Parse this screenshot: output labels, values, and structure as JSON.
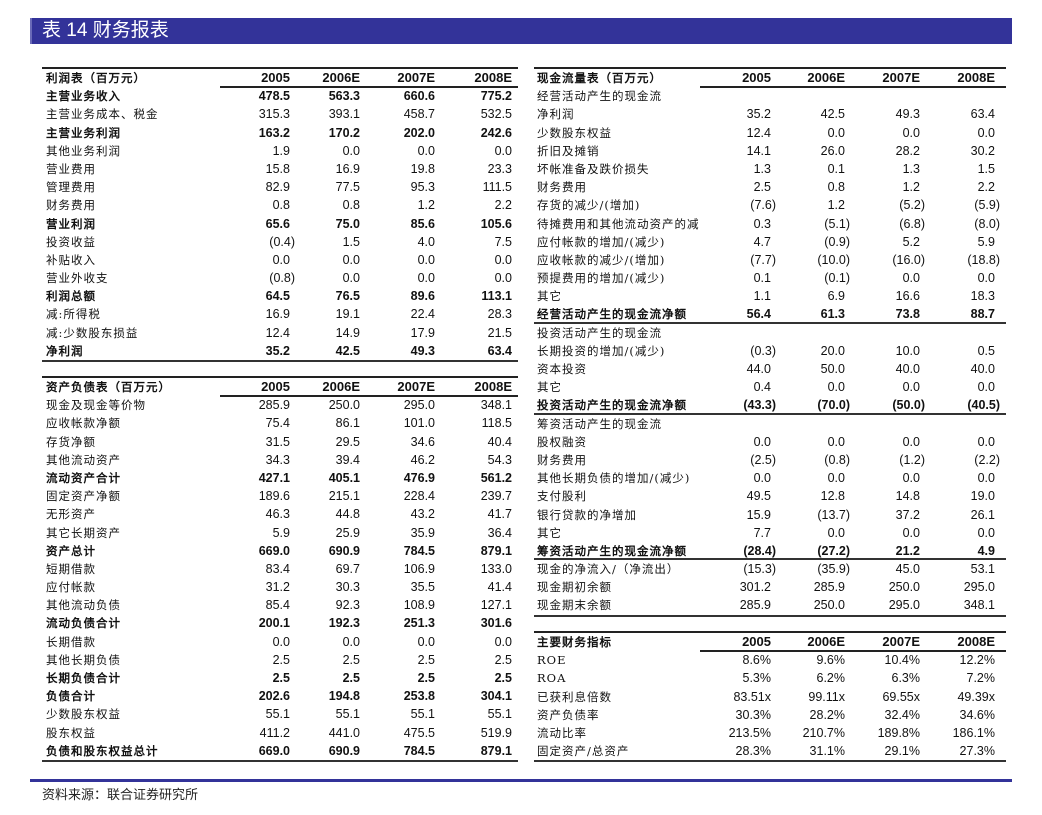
{
  "title": "表 14 财务报表",
  "source": "资料来源：联合证券研究所",
  "colors": {
    "title_bar": "#333399",
    "footer_line": "#333399"
  },
  "tables": {
    "income": {
      "header": {
        "label": "利润表（百万元）",
        "values": [
          "2005",
          "2006E",
          "2007E",
          "2008E"
        ]
      },
      "rows": [
        {
          "label": "主营业务收入",
          "values": [
            "478.5",
            "563.3",
            "660.6",
            "775.2"
          ],
          "bold": true
        },
        {
          "label": "主营业务成本、税金",
          "values": [
            "315.3",
            "393.1",
            "458.7",
            "532.5"
          ]
        },
        {
          "label": "主营业务利润",
          "values": [
            "163.2",
            "170.2",
            "202.0",
            "242.6"
          ],
          "bold": true
        },
        {
          "label": "其他业务利润",
          "values": [
            "1.9",
            "0.0",
            "0.0",
            "0.0"
          ]
        },
        {
          "label": "营业费用",
          "values": [
            "15.8",
            "16.9",
            "19.8",
            "23.3"
          ]
        },
        {
          "label": "管理费用",
          "values": [
            "82.9",
            "77.5",
            "95.3",
            "111.5"
          ]
        },
        {
          "label": "财务费用",
          "values": [
            "0.8",
            "0.8",
            "1.2",
            "2.2"
          ]
        },
        {
          "label": "营业利润",
          "values": [
            "65.6",
            "75.0",
            "85.6",
            "105.6"
          ],
          "bold": true
        },
        {
          "label": "投资收益",
          "values": [
            "(0.4)",
            "1.5",
            "4.0",
            "7.5"
          ]
        },
        {
          "label": "补贴收入",
          "values": [
            "0.0",
            "0.0",
            "0.0",
            "0.0"
          ]
        },
        {
          "label": "营业外收支",
          "values": [
            "(0.8)",
            "0.0",
            "0.0",
            "0.0"
          ]
        },
        {
          "label": "利润总额",
          "values": [
            "64.5",
            "76.5",
            "89.6",
            "113.1"
          ],
          "bold": true
        },
        {
          "label": "减:所得税",
          "values": [
            "16.9",
            "19.1",
            "22.4",
            "28.3"
          ]
        },
        {
          "label": "减:少数股东损益",
          "values": [
            "12.4",
            "14.9",
            "17.9",
            "21.5"
          ]
        },
        {
          "label": "净利润",
          "values": [
            "35.2",
            "42.5",
            "49.3",
            "63.4"
          ],
          "bold": true
        }
      ]
    },
    "balance": {
      "header": {
        "label": "资产负债表（百万元）",
        "values": [
          "2005",
          "2006E",
          "2007E",
          "2008E"
        ]
      },
      "rows": [
        {
          "label": "现金及现金等价物",
          "values": [
            "285.9",
            "250.0",
            "295.0",
            "348.1"
          ]
        },
        {
          "label": "应收帐款净额",
          "values": [
            "75.4",
            "86.1",
            "101.0",
            "118.5"
          ]
        },
        {
          "label": "存货净额",
          "values": [
            "31.5",
            "29.5",
            "34.6",
            "40.4"
          ]
        },
        {
          "label": "其他流动资产",
          "values": [
            "34.3",
            "39.4",
            "46.2",
            "54.3"
          ]
        },
        {
          "label": "流动资产合计",
          "values": [
            "427.1",
            "405.1",
            "476.9",
            "561.2"
          ],
          "bold": true
        },
        {
          "label": "固定资产净额",
          "values": [
            "189.6",
            "215.1",
            "228.4",
            "239.7"
          ]
        },
        {
          "label": "无形资产",
          "values": [
            "46.3",
            "44.8",
            "43.2",
            "41.7"
          ]
        },
        {
          "label": "其它长期资产",
          "values": [
            "5.9",
            "25.9",
            "35.9",
            "36.4"
          ]
        },
        {
          "label": "资产总计",
          "values": [
            "669.0",
            "690.9",
            "784.5",
            "879.1"
          ],
          "bold": true
        },
        {
          "label": "短期借款",
          "values": [
            "83.4",
            "69.7",
            "106.9",
            "133.0"
          ]
        },
        {
          "label": "应付帐款",
          "values": [
            "31.2",
            "30.3",
            "35.5",
            "41.4"
          ]
        },
        {
          "label": "其他流动负债",
          "values": [
            "85.4",
            "92.3",
            "108.9",
            "127.1"
          ]
        },
        {
          "label": "流动负债合计",
          "values": [
            "200.1",
            "192.3",
            "251.3",
            "301.6"
          ],
          "bold": true
        },
        {
          "label": "长期借款",
          "values": [
            "0.0",
            "0.0",
            "0.0",
            "0.0"
          ]
        },
        {
          "label": "其他长期负债",
          "values": [
            "2.5",
            "2.5",
            "2.5",
            "2.5"
          ]
        },
        {
          "label": "长期负债合计",
          "values": [
            "2.5",
            "2.5",
            "2.5",
            "2.5"
          ],
          "bold": true
        },
        {
          "label": "负债合计",
          "values": [
            "202.6",
            "194.8",
            "253.8",
            "304.1"
          ],
          "bold": true
        },
        {
          "label": "少数股东权益",
          "values": [
            "55.1",
            "55.1",
            "55.1",
            "55.1"
          ]
        },
        {
          "label": "股东权益",
          "values": [
            "411.2",
            "441.0",
            "475.5",
            "519.9"
          ]
        },
        {
          "label": "负债和股东权益总计",
          "values": [
            "669.0",
            "690.9",
            "784.5",
            "879.1"
          ],
          "bold": true
        }
      ]
    },
    "cashflow": {
      "header": {
        "label": "现金流量表（百万元）",
        "values": [
          "2005",
          "2006E",
          "2007E",
          "2008E"
        ]
      },
      "rows": [
        {
          "label": "经营活动产生的现金流",
          "values": [
            "",
            "",
            "",
            ""
          ]
        },
        {
          "label": "净利润",
          "values": [
            "35.2",
            "42.5",
            "49.3",
            "63.4"
          ]
        },
        {
          "label": "少数股东权益",
          "values": [
            "12.4",
            "0.0",
            "0.0",
            "0.0"
          ]
        },
        {
          "label": "折旧及摊销",
          "values": [
            "14.1",
            "26.0",
            "28.2",
            "30.2"
          ]
        },
        {
          "label": "坏帐准备及跌价损失",
          "values": [
            "1.3",
            "0.1",
            "1.3",
            "1.5"
          ]
        },
        {
          "label": "财务费用",
          "values": [
            "2.5",
            "0.8",
            "1.2",
            "2.2"
          ]
        },
        {
          "label": "存货的减少/(增加)",
          "values": [
            "(7.6)",
            "1.2",
            "(5.2)",
            "(5.9)"
          ]
        },
        {
          "label": "待摊费用和其他流动资产的减",
          "values": [
            "0.3",
            "(5.1)",
            "(6.8)",
            "(8.0)"
          ]
        },
        {
          "label": "应付帐款的增加/(减少)",
          "values": [
            "4.7",
            "(0.9)",
            "5.2",
            "5.9"
          ]
        },
        {
          "label": "应收帐款的减少/(增加)",
          "values": [
            "(7.7)",
            "(10.0)",
            "(16.0)",
            "(18.8)"
          ]
        },
        {
          "label": "预提费用的增加/(减少)",
          "values": [
            "0.1",
            "(0.1)",
            "0.0",
            "0.0"
          ]
        },
        {
          "label": "其它",
          "values": [
            "1.1",
            "6.9",
            "16.6",
            "18.3"
          ]
        },
        {
          "label": "经营活动产生的现金流净额",
          "values": [
            "56.4",
            "61.3",
            "73.8",
            "88.7"
          ],
          "bold": true,
          "sep": true
        },
        {
          "label": "投资活动产生的现金流",
          "values": [
            "",
            "",
            "",
            ""
          ]
        },
        {
          "label": "长期投资的增加/(减少)",
          "values": [
            "(0.3)",
            "20.0",
            "10.0",
            "0.5"
          ]
        },
        {
          "label": "资本投资",
          "values": [
            "44.0",
            "50.0",
            "40.0",
            "40.0"
          ]
        },
        {
          "label": "其它",
          "values": [
            "0.4",
            "0.0",
            "0.0",
            "0.0"
          ]
        },
        {
          "label": "投资活动产生的现金流净额",
          "values": [
            "(43.3)",
            "(70.0)",
            "(50.0)",
            "(40.5)"
          ],
          "bold": true,
          "sep": true
        },
        {
          "label": "筹资活动产生的现金流",
          "values": [
            "",
            "",
            "",
            ""
          ]
        },
        {
          "label": "股权融资",
          "values": [
            "0.0",
            "0.0",
            "0.0",
            "0.0"
          ]
        },
        {
          "label": "财务费用",
          "values": [
            "(2.5)",
            "(0.8)",
            "(1.2)",
            "(2.2)"
          ]
        },
        {
          "label": "其他长期负债的增加/(减少)",
          "values": [
            "0.0",
            "0.0",
            "0.0",
            "0.0"
          ]
        },
        {
          "label": "支付股利",
          "values": [
            "49.5",
            "12.8",
            "14.8",
            "19.0"
          ]
        },
        {
          "label": "银行贷款的净增加",
          "values": [
            "15.9",
            "(13.7)",
            "37.2",
            "26.1"
          ]
        },
        {
          "label": "其它",
          "values": [
            "7.7",
            "0.0",
            "0.0",
            "0.0"
          ]
        },
        {
          "label": "筹资活动产生的现金流净额",
          "values": [
            "(28.4)",
            "(27.2)",
            "21.2",
            "4.9"
          ],
          "bold": true,
          "sep": true
        },
        {
          "label": "现金的净流入/（净流出）",
          "values": [
            "(15.3)",
            "(35.9)",
            "45.0",
            "53.1"
          ]
        },
        {
          "label": "现金期初余额",
          "values": [
            "301.2",
            "285.9",
            "250.0",
            "295.0"
          ]
        },
        {
          "label": "现金期末余额",
          "values": [
            "285.9",
            "250.0",
            "295.0",
            "348.1"
          ]
        }
      ]
    },
    "ratios": {
      "header": {
        "label": "主要财务指标",
        "values": [
          "2005",
          "2006E",
          "2007E",
          "2008E"
        ]
      },
      "rows": [
        {
          "label": "ROE",
          "values": [
            "8.6%",
            "9.6%",
            "10.4%",
            "12.2%"
          ]
        },
        {
          "label": "ROA",
          "values": [
            "5.3%",
            "6.2%",
            "6.3%",
            "7.2%"
          ]
        },
        {
          "label": "已获利息倍数",
          "values": [
            "83.51x",
            "99.11x",
            "69.55x",
            "49.39x"
          ]
        },
        {
          "label": "资产负债率",
          "values": [
            "30.3%",
            "28.2%",
            "32.4%",
            "34.6%"
          ]
        },
        {
          "label": "流动比率",
          "values": [
            "213.5%",
            "210.7%",
            "189.8%",
            "186.1%"
          ]
        },
        {
          "label": "固定资产/总资产",
          "values": [
            "28.3%",
            "31.1%",
            "29.1%",
            "27.3%"
          ]
        }
      ]
    }
  }
}
